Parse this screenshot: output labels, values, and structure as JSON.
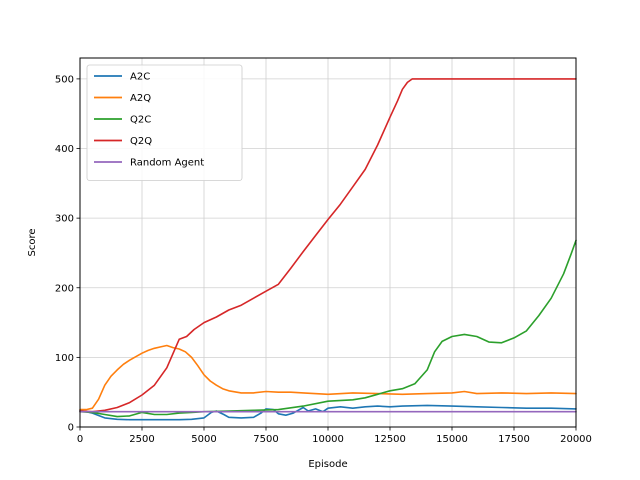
{
  "chart_data": {
    "type": "line",
    "title": "",
    "xlabel": "Episode",
    "ylabel": "Score",
    "xlim": [
      0,
      20000
    ],
    "ylim": [
      0,
      530
    ],
    "xticks": [
      0,
      2500,
      5000,
      7500,
      10000,
      12500,
      15000,
      17500,
      20000
    ],
    "yticks": [
      0,
      100,
      200,
      300,
      400,
      500
    ],
    "grid": true,
    "legend_position": "top-left",
    "series": [
      {
        "name": "A2C",
        "color": "#1f77b4",
        "x": [
          0,
          500,
          1000,
          1500,
          2000,
          2500,
          3000,
          3500,
          4000,
          4500,
          5000,
          5300,
          5500,
          5800,
          6000,
          6500,
          7000,
          7300,
          7500,
          7800,
          8000,
          8300,
          8600,
          9000,
          9200,
          9500,
          9800,
          10000,
          10500,
          11000,
          11500,
          12000,
          12500,
          13000,
          14000,
          15000,
          16000,
          17000,
          18000,
          19000,
          20000
        ],
        "y": [
          24,
          20,
          13,
          11,
          10.5,
          10.5,
          10.5,
          10.5,
          10.5,
          11,
          13,
          21,
          23,
          18,
          14,
          13,
          14,
          20,
          26,
          25,
          19,
          17,
          20,
          28,
          23,
          26,
          22,
          27,
          29,
          27,
          29,
          30,
          29,
          30,
          31,
          30,
          29,
          28,
          27,
          27,
          26
        ]
      },
      {
        "name": "A2Q",
        "color": "#ff7f0e",
        "x": [
          0,
          250,
          500,
          750,
          1000,
          1250,
          1500,
          1750,
          2000,
          2250,
          2500,
          2750,
          3000,
          3250,
          3500,
          3750,
          4000,
          4250,
          4500,
          4750,
          5000,
          5250,
          5500,
          5750,
          6000,
          6500,
          7000,
          7500,
          8000,
          8500,
          9000,
          10000,
          11000,
          12000,
          13000,
          14000,
          15000,
          15500,
          16000,
          17000,
          18000,
          19000,
          20000
        ],
        "y": [
          25,
          25,
          27,
          40,
          60,
          73,
          82,
          90,
          96,
          101,
          106,
          110,
          113,
          115,
          117,
          114,
          112,
          108,
          100,
          88,
          75,
          66,
          60,
          55,
          52,
          49,
          49,
          51,
          50,
          50,
          49,
          47,
          49,
          48,
          47,
          48,
          49,
          51,
          48,
          49,
          48,
          49,
          48
        ]
      },
      {
        "name": "Q2C",
        "color": "#2ca02c",
        "x": [
          0,
          500,
          1000,
          1500,
          2000,
          2500,
          3000,
          3500,
          4000,
          4500,
          5000,
          6000,
          7000,
          8000,
          9000,
          10000,
          11000,
          11500,
          12000,
          12500,
          13000,
          13500,
          14000,
          14300,
          14600,
          15000,
          15500,
          16000,
          16500,
          17000,
          17500,
          18000,
          18500,
          19000,
          19500,
          19800,
          20000
        ],
        "y": [
          22,
          21,
          18,
          15,
          16,
          21,
          18,
          18,
          20,
          21,
          22,
          23,
          24,
          25,
          30,
          37,
          39,
          42,
          47,
          52,
          55,
          62,
          82,
          108,
          123,
          130,
          133,
          130,
          122,
          121,
          128,
          138,
          160,
          185,
          220,
          248,
          268
        ]
      },
      {
        "name": "Q2Q",
        "color": "#d62728",
        "x": [
          0,
          500,
          1000,
          1500,
          2000,
          2500,
          3000,
          3500,
          4000,
          4300,
          4600,
          5000,
          5500,
          6000,
          6500,
          7000,
          7500,
          8000,
          8500,
          9000,
          9500,
          10000,
          10500,
          11000,
          11500,
          12000,
          12500,
          12800,
          13000,
          13200,
          13400,
          14000,
          15000,
          16000,
          17000,
          18000,
          19000,
          20000
        ],
        "y": [
          23,
          22,
          24,
          28,
          35,
          46,
          60,
          85,
          126,
          130,
          140,
          150,
          158,
          168,
          175,
          185,
          195,
          205,
          228,
          252,
          275,
          298,
          320,
          345,
          370,
          405,
          445,
          468,
          485,
          495,
          500,
          500,
          500,
          500,
          500,
          500,
          500,
          500
        ]
      },
      {
        "name": "Random Agent",
        "color": "#9467bd",
        "x": [
          0,
          1000,
          2000,
          3000,
          4000,
          5000,
          6000,
          7000,
          8000,
          9000,
          10000,
          11000,
          12000,
          13000,
          14000,
          15000,
          16000,
          17000,
          18000,
          19000,
          20000
        ],
        "y": [
          22,
          22,
          22,
          22,
          22,
          22,
          22,
          22,
          22,
          22,
          22,
          22,
          22,
          22,
          22,
          22,
          22,
          22,
          22,
          22,
          22
        ]
      }
    ]
  }
}
